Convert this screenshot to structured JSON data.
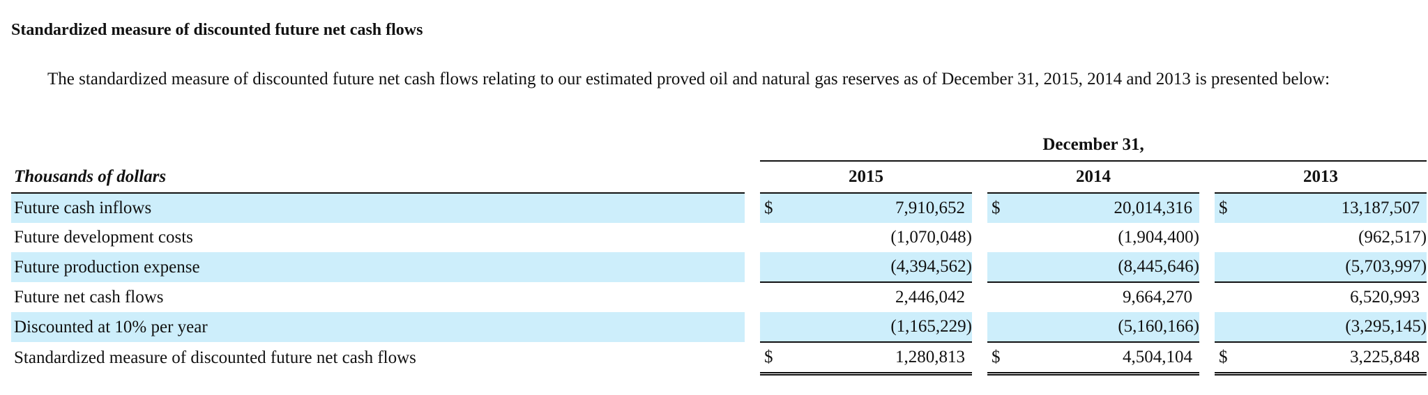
{
  "section": {
    "heading": "Standardized measure of discounted future net cash flows",
    "paragraph": "The standardized measure of discounted future net cash flows relating to our estimated proved oil and natural gas reserves as of December 31, 2015, 2014 and 2013 is presented below:"
  },
  "table": {
    "period_header": "December 31,",
    "units_label": "Thousands of dollars",
    "years": [
      "2015",
      "2014",
      "2013"
    ],
    "currency_symbol": "$",
    "shade_color": "#cdeefb",
    "rows": [
      {
        "label": "Future cash inflows",
        "values": [
          "7,910,652",
          "20,014,316",
          "13,187,507"
        ],
        "show_dollar": true
      },
      {
        "label": "Future development costs",
        "values": [
          "(1,070,048)",
          "(1,904,400)",
          "(962,517)"
        ],
        "show_dollar": false
      },
      {
        "label": "Future production expense",
        "values": [
          "(4,394,562)",
          "(8,445,646)",
          "(5,703,997)"
        ],
        "show_dollar": false
      },
      {
        "label": "Future net cash flows",
        "values": [
          "2,446,042",
          "9,664,270",
          "6,520,993"
        ],
        "show_dollar": false
      },
      {
        "label": "Discounted at 10% per year",
        "values": [
          "(1,165,229)",
          "(5,160,166)",
          "(3,295,145)"
        ],
        "show_dollar": false
      },
      {
        "label": "Standardized measure of discounted future net cash flows",
        "values": [
          "1,280,813",
          "4,504,104",
          "3,225,848"
        ],
        "show_dollar": true
      }
    ]
  }
}
